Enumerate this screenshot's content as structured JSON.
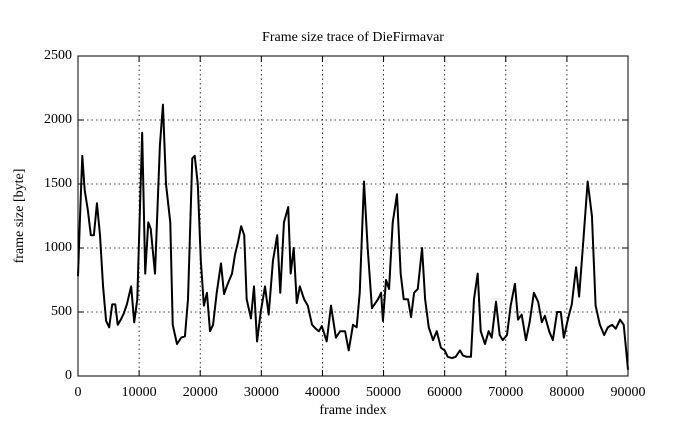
{
  "chart_data": {
    "type": "line",
    "title": "Frame size trace of DieFirmavar",
    "x_label": "frame index",
    "y_label": "frame size [byte]",
    "xlim": [
      0,
      90000
    ],
    "xticks": [
      0,
      10000,
      20000,
      30000,
      40000,
      50000,
      60000,
      70000,
      80000,
      90000
    ],
    "ylim": [
      0,
      2500
    ],
    "yticks": [
      0,
      500,
      1000,
      1500,
      2000,
      2500
    ],
    "grid": true,
    "series": [
      {
        "name": "frame size",
        "color": "#000000",
        "x": [
          0,
          300,
          700,
          1100,
          1600,
          2100,
          2600,
          3100,
          3600,
          4100,
          4600,
          5100,
          5600,
          6100,
          6500,
          7000,
          7500,
          8000,
          8700,
          9200,
          9700,
          10500,
          11000,
          11500,
          11900,
          12600,
          13400,
          13900,
          14400,
          15100,
          15500,
          16200,
          16900,
          17500,
          18000,
          18700,
          19100,
          19600,
          20100,
          20600,
          21100,
          21600,
          22100,
          22700,
          23400,
          23900,
          24500,
          25200,
          25700,
          26200,
          26700,
          27200,
          27600,
          28300,
          28800,
          29300,
          29900,
          30600,
          31200,
          31900,
          32600,
          33100,
          33700,
          34400,
          34800,
          35300,
          35800,
          36300,
          37000,
          37600,
          38300,
          38900,
          39400,
          39900,
          40700,
          41400,
          42200,
          42900,
          43700,
          44300,
          45000,
          45600,
          46100,
          46800,
          47400,
          48100,
          49100,
          49600,
          49900,
          50400,
          50900,
          51500,
          52200,
          52800,
          53300,
          54000,
          54500,
          55000,
          55600,
          56300,
          56800,
          57400,
          58100,
          58700,
          59400,
          60000,
          60500,
          61200,
          61800,
          62500,
          63000,
          63600,
          64300,
          64800,
          65400,
          65900,
          66600,
          67200,
          67700,
          68400,
          69000,
          69500,
          70200,
          70800,
          71500,
          72000,
          72600,
          73300,
          73900,
          74600,
          75300,
          75900,
          76400,
          77100,
          77700,
          78400,
          79000,
          79500,
          80200,
          80800,
          81500,
          82000,
          82600,
          83400,
          84100,
          84700,
          85400,
          86100,
          86700,
          87400,
          88000,
          88700,
          89300,
          90000
        ],
        "values": [
          780,
          1200,
          1720,
          1450,
          1300,
          1100,
          1100,
          1350,
          1100,
          700,
          430,
          380,
          560,
          560,
          400,
          440,
          490,
          560,
          700,
          420,
          600,
          1900,
          800,
          1200,
          1150,
          800,
          1800,
          2120,
          1500,
          1200,
          400,
          250,
          300,
          310,
          600,
          1700,
          1720,
          1500,
          900,
          550,
          650,
          350,
          400,
          650,
          880,
          640,
          720,
          800,
          950,
          1050,
          1170,
          1100,
          600,
          450,
          700,
          270,
          500,
          700,
          480,
          900,
          1100,
          650,
          1200,
          1320,
          800,
          1000,
          570,
          700,
          600,
          550,
          400,
          370,
          350,
          390,
          270,
          550,
          300,
          350,
          350,
          200,
          400,
          380,
          650,
          1520,
          1000,
          530,
          600,
          650,
          430,
          750,
          680,
          1200,
          1420,
          800,
          600,
          600,
          460,
          650,
          680,
          1000,
          600,
          380,
          280,
          350,
          220,
          200,
          150,
          140,
          150,
          200,
          160,
          150,
          150,
          600,
          800,
          350,
          250,
          350,
          300,
          580,
          320,
          280,
          320,
          550,
          720,
          440,
          480,
          280,
          420,
          650,
          580,
          420,
          470,
          350,
          280,
          500,
          500,
          300,
          450,
          560,
          850,
          620,
          1000,
          1520,
          1250,
          550,
          400,
          320,
          380,
          400,
          370,
          440,
          400,
          50
        ]
      }
    ]
  }
}
